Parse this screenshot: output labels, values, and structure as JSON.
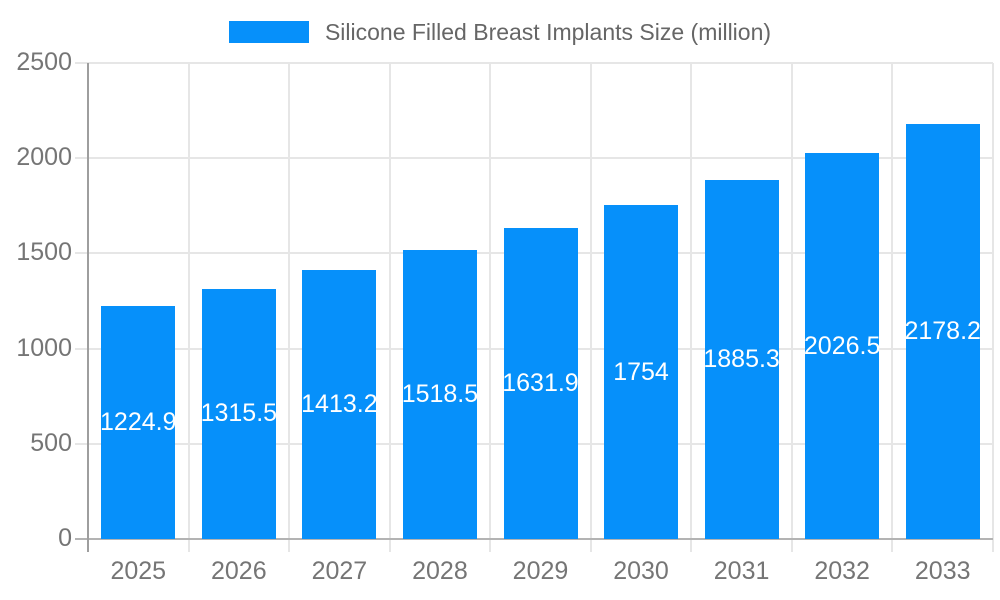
{
  "legend": {
    "label": "Silicone Filled Breast Implants Size (million)"
  },
  "chart_data": {
    "type": "bar",
    "title": "Silicone Filled Breast Implants Size (million)",
    "categories": [
      "2025",
      "2026",
      "2027",
      "2028",
      "2029",
      "2030",
      "2031",
      "2032",
      "2033"
    ],
    "values": [
      1224.9,
      1315.5,
      1413.2,
      1518.5,
      1631.9,
      1754,
      1885.3,
      2026.5,
      2178.2
    ],
    "bar_labels": [
      "1224.9",
      "1315.5",
      "1413.2",
      "1518.5",
      "1631.9",
      "1754",
      "1885.3",
      "2026.5",
      "2178.2"
    ],
    "xlabel": "",
    "ylabel": "",
    "ylim": [
      0,
      2500
    ],
    "ytick_interval": 500,
    "yticks": [
      "0",
      "500",
      "1000",
      "1500",
      "2000",
      "2500"
    ],
    "grid": true,
    "legend_position": "top",
    "value_labels": "inside-center"
  },
  "colors": {
    "bar": "#0690fa",
    "grid_line": "#e6e6e6",
    "y_axis_line": "#9e9e9e",
    "x_axis_line": "#b3b3b3",
    "tick_label": "#757575",
    "legend_text": "#666666",
    "value_label": "#ffffff",
    "background": "#ffffff"
  }
}
